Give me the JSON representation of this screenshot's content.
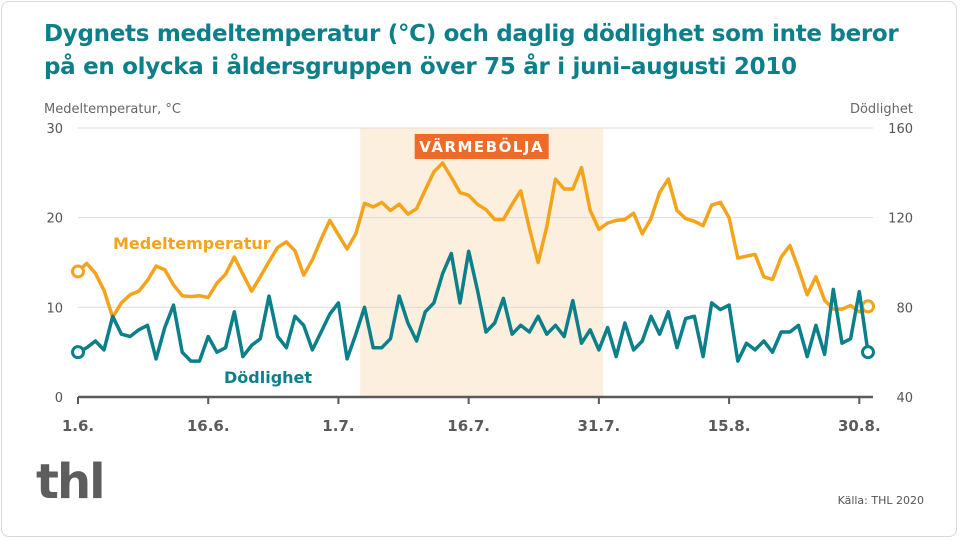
{
  "title": "Dygnets medeltemperatur (°C) och daglig dödlighet som inte beror på en olycka i åldersgruppen över 75 år i juni–augusti 2010",
  "logo": "thl",
  "source": "Källa: THL 2020",
  "colors": {
    "title": "#0b7f8a",
    "temperature": "#f5a31a",
    "mortality": "#0b7f8a",
    "heatwave_band": "#fdefdd",
    "heatwave_badge": "#ef6a28"
  },
  "chart_data": {
    "type": "line",
    "x_start": "2010-06-01",
    "x_end": "2010-08-31",
    "x_ticks": [
      "1.6.",
      "16.6.",
      "1.7.",
      "16.7.",
      "31.7.",
      "15.8.",
      "30.8."
    ],
    "x_tick_days": [
      0,
      15,
      30,
      45,
      60,
      75,
      90
    ],
    "left_axis": {
      "label": "Medeltemperatur, °C",
      "ylim": [
        0,
        30
      ],
      "ticks": [
        "0",
        "10",
        "20",
        "30"
      ]
    },
    "right_axis": {
      "label": "Dödlighet",
      "ylim": [
        40,
        160
      ],
      "ticks": [
        "40",
        "80",
        "120",
        "160"
      ]
    },
    "grid": true,
    "annotation": {
      "label": "VÄRMEBÖLJA",
      "from": "2010-07-04",
      "to": "2010-07-31"
    },
    "series": [
      {
        "name": "Medeltemperatur",
        "axis": "left",
        "values": [
          14.0,
          14.9,
          13.8,
          11.9,
          8.9,
          10.5,
          11.4,
          11.8,
          13.0,
          14.6,
          14.2,
          12.5,
          11.3,
          11.2,
          11.3,
          11.1,
          12.7,
          13.7,
          15.6,
          13.7,
          11.8,
          13.4,
          15.1,
          16.7,
          17.3,
          16.3,
          13.6,
          15.3,
          17.6,
          19.7,
          18.1,
          16.5,
          18.2,
          21.6,
          21.2,
          21.7,
          20.8,
          21.5,
          20.4,
          21.0,
          23.1,
          25.1,
          26.1,
          24.5,
          22.8,
          22.5,
          21.5,
          20.9,
          19.8,
          19.8,
          21.5,
          23.0,
          18.8,
          15.0,
          19.0,
          24.3,
          23.2,
          23.2,
          25.6,
          20.8,
          18.7,
          19.4,
          19.7,
          19.8,
          20.5,
          18.2,
          19.9,
          22.8,
          24.3,
          20.8,
          19.9,
          19.6,
          19.1,
          21.4,
          21.7,
          20.0,
          15.5,
          15.7,
          15.9,
          13.4,
          13.1,
          15.6,
          16.9,
          14.3,
          11.4,
          13.4,
          10.8,
          9.8,
          9.8,
          10.2,
          9.5,
          10.1
        ]
      },
      {
        "name": "Dödlighet",
        "axis": "right",
        "values": [
          60,
          62,
          65,
          61,
          76,
          68,
          67,
          70,
          72,
          57,
          71,
          81,
          60,
          56,
          56,
          67,
          60,
          62,
          78,
          58,
          63,
          66,
          85,
          67,
          62,
          76,
          72,
          61,
          69,
          77,
          82,
          57,
          68,
          80,
          62,
          62,
          66,
          85,
          73,
          65,
          78,
          82,
          95,
          104,
          82,
          105,
          88,
          69,
          73,
          84,
          68,
          72,
          69,
          76,
          68,
          72,
          67,
          83,
          64,
          70,
          61,
          71,
          58,
          73,
          61,
          65,
          76,
          68,
          78,
          62,
          75,
          76,
          58,
          82,
          79,
          81,
          56,
          64,
          61,
          65,
          60,
          69,
          69,
          72,
          58,
          72,
          59,
          88,
          64,
          66,
          87,
          60
        ]
      }
    ]
  }
}
